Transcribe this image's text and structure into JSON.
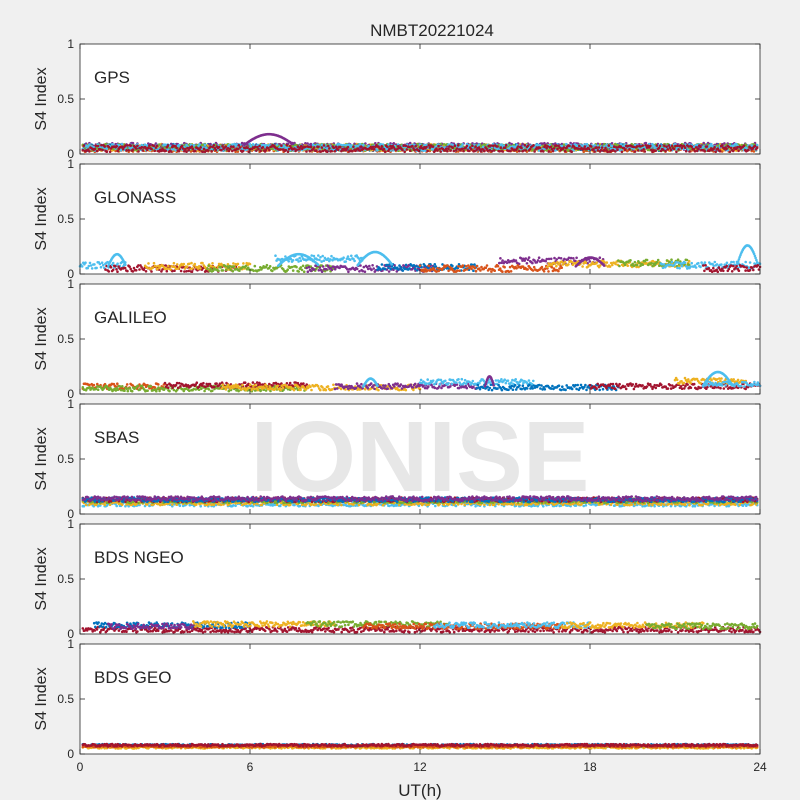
{
  "figure": {
    "title": "NMBT20221024",
    "xlabel": "UT(h)",
    "watermark": "IONISE"
  },
  "chart_data": [
    {
      "type": "scatter",
      "label": "GPS",
      "ylabel": "S4 Index",
      "xlim": [
        0,
        24
      ],
      "ylim": [
        0,
        1
      ],
      "xticks": [
        0,
        6,
        12,
        18,
        24
      ],
      "yticks": [
        0,
        0.5,
        1
      ],
      "x_tick_labels": [],
      "baseline": 0.06,
      "spread": 0.03,
      "series_segments": [
        {
          "color": "#0072BD",
          "x": [
            0.1,
            23.9
          ],
          "base": 0.06
        },
        {
          "color": "#D95319",
          "x": [
            0.1,
            23.9
          ],
          "base": 0.05
        },
        {
          "color": "#EDB120",
          "x": [
            0.1,
            23.9
          ],
          "base": 0.06
        },
        {
          "color": "#7E2F8E",
          "x": [
            0.1,
            23.9
          ],
          "base": 0.07
        },
        {
          "color": "#77AC30",
          "x": [
            0.1,
            23.9
          ],
          "base": 0.06
        },
        {
          "color": "#4DBEEE",
          "x": [
            0.1,
            23.9
          ],
          "base": 0.06
        },
        {
          "color": "#A2142F",
          "x": [
            0.1,
            23.9
          ],
          "base": 0.05
        }
      ],
      "bumps": [
        {
          "color": "#7E2F8E",
          "x": [
            5.8,
            7.5
          ],
          "peak": 0.18
        }
      ]
    },
    {
      "type": "scatter",
      "label": "GLONASS",
      "ylabel": "S4 Index",
      "xlim": [
        0,
        24
      ],
      "ylim": [
        0,
        1
      ],
      "xticks": [
        0,
        6,
        12,
        18,
        24
      ],
      "yticks": [
        0,
        0.5,
        1
      ],
      "x_tick_labels": [],
      "baseline": 0.05,
      "spread": 0.03,
      "series_segments": [
        {
          "color": "#4DBEEE",
          "x": [
            0.0,
            1.6
          ],
          "base": 0.08
        },
        {
          "color": "#A2142F",
          "x": [
            0.9,
            5.5
          ],
          "base": 0.05
        },
        {
          "color": "#EDB120",
          "x": [
            2.3,
            6.0
          ],
          "base": 0.07
        },
        {
          "color": "#77AC30",
          "x": [
            4.5,
            9.0
          ],
          "base": 0.05
        },
        {
          "color": "#4DBEEE",
          "x": [
            6.9,
            10.0
          ],
          "base": 0.14
        },
        {
          "color": "#7E2F8E",
          "x": [
            8.0,
            12.5
          ],
          "base": 0.05
        },
        {
          "color": "#0072BD",
          "x": [
            10.5,
            14.0
          ],
          "base": 0.06
        },
        {
          "color": "#7E2F8E",
          "x": [
            14.8,
            18.5
          ],
          "base": 0.12
        },
        {
          "color": "#D95319",
          "x": [
            12.0,
            17.0
          ],
          "base": 0.05
        },
        {
          "color": "#EDB120",
          "x": [
            16.5,
            21.5
          ],
          "base": 0.09
        },
        {
          "color": "#77AC30",
          "x": [
            19.0,
            21.5
          ],
          "base": 0.1
        },
        {
          "color": "#4DBEEE",
          "x": [
            20.5,
            24.0
          ],
          "base": 0.08
        },
        {
          "color": "#A2142F",
          "x": [
            22.0,
            24.0
          ],
          "base": 0.05
        }
      ],
      "bumps": [
        {
          "color": "#4DBEEE",
          "x": [
            1.0,
            1.6
          ],
          "peak": 0.18
        },
        {
          "color": "#4DBEEE",
          "x": [
            7.0,
            8.4
          ],
          "peak": 0.18
        },
        {
          "color": "#4DBEEE",
          "x": [
            9.8,
            11.0
          ],
          "peak": 0.2
        },
        {
          "color": "#7E2F8E",
          "x": [
            17.5,
            18.5
          ],
          "peak": 0.15
        },
        {
          "color": "#4DBEEE",
          "x": [
            23.2,
            23.9
          ],
          "peak": 0.26
        }
      ]
    },
    {
      "type": "scatter",
      "label": "GALILEO",
      "ylabel": "S4 Index",
      "xlim": [
        0,
        24
      ],
      "ylim": [
        0,
        1
      ],
      "xticks": [
        0,
        6,
        12,
        18,
        24
      ],
      "yticks": [
        0,
        0.5,
        1
      ],
      "x_tick_labels": [],
      "baseline": 0.05,
      "spread": 0.025,
      "series_segments": [
        {
          "color": "#D95319",
          "x": [
            0.1,
            3.0
          ],
          "base": 0.07
        },
        {
          "color": "#77AC30",
          "x": [
            0.1,
            8.0
          ],
          "base": 0.05
        },
        {
          "color": "#A2142F",
          "x": [
            3.0,
            8.0
          ],
          "base": 0.08
        },
        {
          "color": "#EDB120",
          "x": [
            5.0,
            12.0
          ],
          "base": 0.06
        },
        {
          "color": "#7E2F8E",
          "x": [
            9.0,
            14.0
          ],
          "base": 0.07
        },
        {
          "color": "#4DBEEE",
          "x": [
            12.0,
            16.0
          ],
          "base": 0.11
        },
        {
          "color": "#0072BD",
          "x": [
            14.0,
            19.0
          ],
          "base": 0.06
        },
        {
          "color": "#A2142F",
          "x": [
            18.0,
            24.0
          ],
          "base": 0.07
        },
        {
          "color": "#EDB120",
          "x": [
            21.0,
            23.5
          ],
          "base": 0.12
        },
        {
          "color": "#4DBEEE",
          "x": [
            22.0,
            24.0
          ],
          "base": 0.09
        }
      ],
      "bumps": [
        {
          "color": "#4DBEEE",
          "x": [
            10.0,
            10.5
          ],
          "peak": 0.14
        },
        {
          "color": "#7E2F8E",
          "x": [
            14.3,
            14.6
          ],
          "peak": 0.16
        },
        {
          "color": "#4DBEEE",
          "x": [
            22.0,
            23.0
          ],
          "peak": 0.2
        }
      ]
    },
    {
      "type": "scatter",
      "label": "SBAS",
      "ylabel": "S4 Index",
      "xlim": [
        0,
        24
      ],
      "ylim": [
        0,
        1
      ],
      "xticks": [
        0,
        6,
        12,
        18,
        24
      ],
      "yticks": [
        0,
        0.5,
        1
      ],
      "x_tick_labels": [],
      "baseline": 0.12,
      "spread": 0.02,
      "series_segments": [
        {
          "color": "#4DBEEE",
          "x": [
            0.1,
            23.9
          ],
          "base": 0.09
        },
        {
          "color": "#EDB120",
          "x": [
            0.1,
            23.9
          ],
          "base": 0.1
        },
        {
          "color": "#77AC30",
          "x": [
            0.1,
            23.9
          ],
          "base": 0.12
        },
        {
          "color": "#A2142F",
          "x": [
            0.1,
            23.9
          ],
          "base": 0.13
        },
        {
          "color": "#0072BD",
          "x": [
            0.1,
            23.9
          ],
          "base": 0.13
        },
        {
          "color": "#7E2F8E",
          "x": [
            0.1,
            23.9
          ],
          "base": 0.14
        }
      ],
      "bumps": []
    },
    {
      "type": "scatter",
      "label": "BDS NGEO",
      "ylabel": "S4 Index",
      "xlim": [
        0,
        24
      ],
      "ylim": [
        0,
        1
      ],
      "xticks": [
        0,
        6,
        12,
        18,
        24
      ],
      "yticks": [
        0,
        0.5,
        1
      ],
      "x_tick_labels": [],
      "baseline": 0.05,
      "spread": 0.025,
      "series_segments": [
        {
          "color": "#A2142F",
          "x": [
            0.1,
            24.0
          ],
          "base": 0.04
        },
        {
          "color": "#0072BD",
          "x": [
            0.5,
            6.0
          ],
          "base": 0.08
        },
        {
          "color": "#7E2F8E",
          "x": [
            1.0,
            4.0
          ],
          "base": 0.07
        },
        {
          "color": "#EDB120",
          "x": [
            4.0,
            9.0
          ],
          "base": 0.09
        },
        {
          "color": "#77AC30",
          "x": [
            8.0,
            13.0
          ],
          "base": 0.09
        },
        {
          "color": "#D95319",
          "x": [
            10.0,
            17.0
          ],
          "base": 0.07
        },
        {
          "color": "#4DBEEE",
          "x": [
            12.5,
            18.0
          ],
          "base": 0.08
        },
        {
          "color": "#EDB120",
          "x": [
            17.0,
            22.0
          ],
          "base": 0.08
        },
        {
          "color": "#77AC30",
          "x": [
            20.0,
            23.9
          ],
          "base": 0.07
        }
      ],
      "bumps": []
    },
    {
      "type": "scatter",
      "label": "BDS GEO",
      "ylabel": "S4 Index",
      "xlim": [
        0,
        24
      ],
      "ylim": [
        0,
        1
      ],
      "xticks": [
        0,
        6,
        12,
        18,
        24
      ],
      "yticks": [
        0,
        0.5,
        1
      ],
      "x_tick_labels": [
        "0",
        "6",
        "12",
        "18",
        "24"
      ],
      "baseline": 0.07,
      "spread": 0.01,
      "series_segments": [
        {
          "color": "#EDB120",
          "x": [
            0.1,
            23.9
          ],
          "base": 0.06
        },
        {
          "color": "#0072BD",
          "x": [
            0.1,
            23.9
          ],
          "base": 0.08
        },
        {
          "color": "#D95319",
          "x": [
            0.1,
            23.9
          ],
          "base": 0.07
        },
        {
          "color": "#A2142F",
          "x": [
            0.1,
            23.9
          ],
          "base": 0.08
        }
      ],
      "bumps": []
    }
  ]
}
